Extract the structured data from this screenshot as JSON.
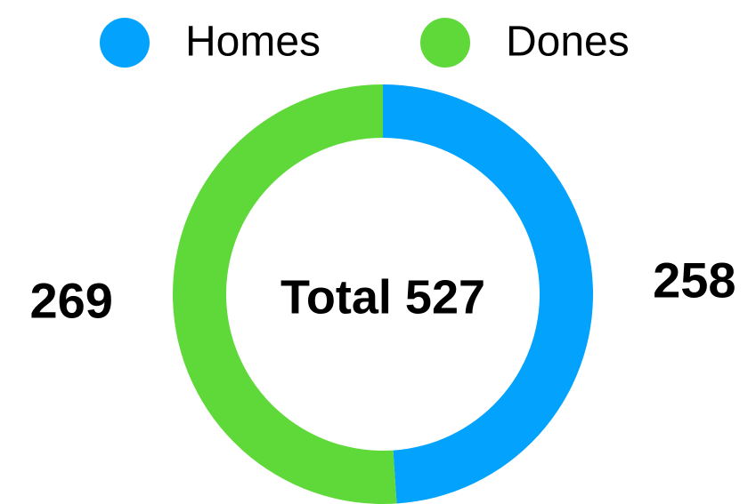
{
  "chart_data": {
    "type": "donut",
    "categories": [
      "Homes",
      "Dones"
    ],
    "values": [
      258,
      269
    ],
    "colors": [
      "#03a2fc",
      "#5fd93a"
    ],
    "center_label": "Total 527",
    "legend": "top"
  }
}
